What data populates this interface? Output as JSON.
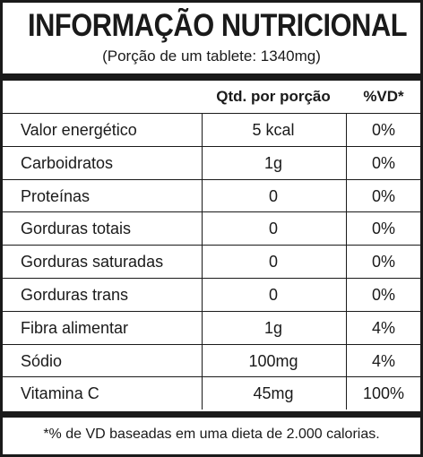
{
  "title": "INFORMAÇÃO NUTRICIONAL",
  "serving": "(Porção de um tablete: 1340mg)",
  "columns": {
    "qty": "Qtd. por porção",
    "vd": "%VD*"
  },
  "rows": [
    {
      "name": "Valor energético",
      "qty": "5 kcal",
      "vd": "0%"
    },
    {
      "name": "Carboidratos",
      "qty": "1g",
      "vd": "0%"
    },
    {
      "name": "Proteínas",
      "qty": "0",
      "vd": "0%"
    },
    {
      "name": "Gorduras totais",
      "qty": "0",
      "vd": "0%"
    },
    {
      "name": "Gorduras saturadas",
      "qty": "0",
      "vd": "0%"
    },
    {
      "name": "Gorduras trans",
      "qty": "0",
      "vd": "0%"
    },
    {
      "name": "Fibra alimentar",
      "qty": "1g",
      "vd": "4%"
    },
    {
      "name": "Sódio",
      "qty": "100mg",
      "vd": "4%"
    },
    {
      "name": "Vitamina C",
      "qty": "45mg",
      "vd": "100%"
    }
  ],
  "footnote": "*% de VD baseadas em uma dieta de 2.000 calorias."
}
